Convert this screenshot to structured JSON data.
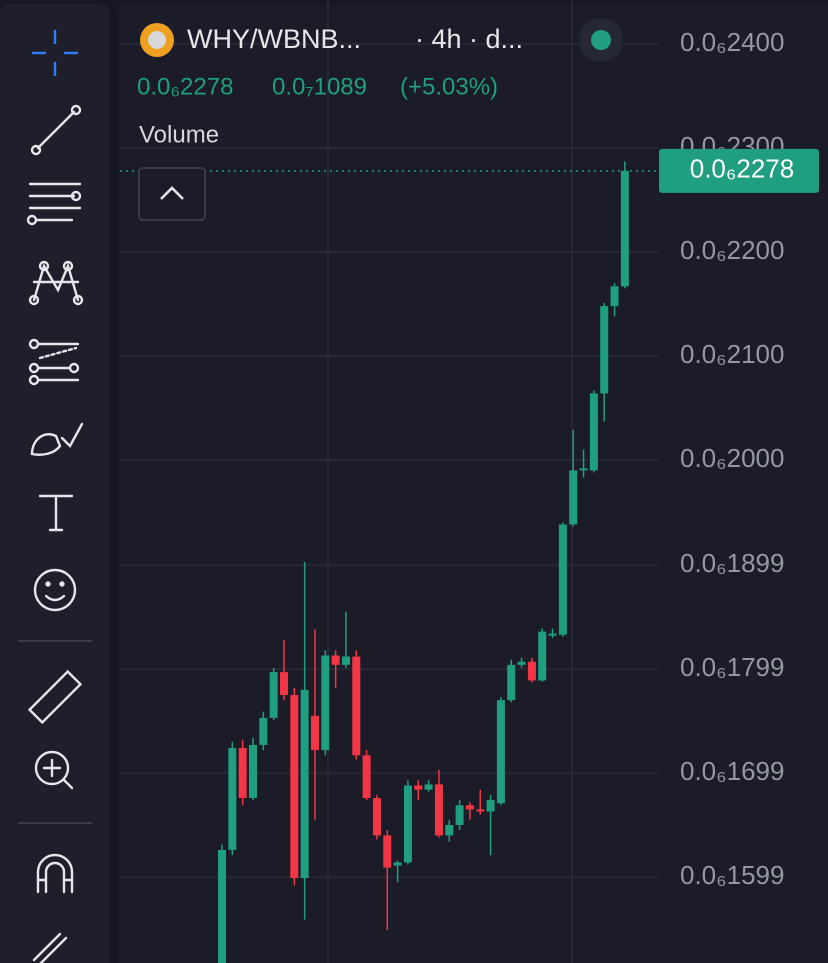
{
  "header": {
    "pair": "WHY/WBNB...",
    "interval": "· 4h · d...",
    "price": "0.0₆2278",
    "change": "0.0₇1089",
    "change_pct": "(+5.03%)",
    "indicator": "Volume"
  },
  "chart_data": {
    "type": "candlestick",
    "up_color": "#1f9e80",
    "down_color": "#f23645",
    "ylim": [
      1.5163e-07,
      2.4423e-07
    ],
    "yticks": [
      {
        "value": 2.4e-07,
        "label": "0.0₆2400"
      },
      {
        "value": 2.3e-07,
        "label": "0.0₆2300"
      },
      {
        "value": 2.2e-07,
        "label": "0.0₆2200"
      },
      {
        "value": 2.1e-07,
        "label": "0.0₆2100"
      },
      {
        "value": 2e-07,
        "label": "0.0₆2000"
      },
      {
        "value": 1.899e-07,
        "label": "0.0₆1899"
      },
      {
        "value": 1.799e-07,
        "label": "0.0₆1799"
      },
      {
        "value": 1.699e-07,
        "label": "0.0₆1699"
      },
      {
        "value": 1.599e-07,
        "label": "0.0₆1599"
      }
    ],
    "last_price": {
      "value": 2.278e-07,
      "label": "0.0₆2278"
    },
    "open": [
      1.51e-07,
      1.625e-07,
      1.723e-07,
      1.675e-07,
      1.726e-07,
      1.752e-07,
      1.796e-07,
      1.774e-07,
      1.598e-07,
      1.754e-07,
      1.721e-07,
      1.812e-07,
      1.803e-07,
      1.811e-07,
      1.716e-07,
      1.675e-07,
      1.639e-07,
      1.61e-07,
      1.613e-07,
      1.687e-07,
      1.683e-07,
      1.688e-07,
      1.639e-07,
      1.649e-07,
      1.668e-07,
      1.664e-07,
      1.662e-07,
      1.67e-07,
      1.769e-07,
      1.803e-07,
      1.806e-07,
      1.788e-07,
      1.831e-07,
      1.832e-07,
      1.938e-07,
      1.99e-07,
      1.99e-07,
      2.064e-07,
      2.148e-07,
      2.167e-07
    ],
    "high": [
      1.63e-07,
      1.729e-07,
      1.731e-07,
      1.733e-07,
      1.758e-07,
      1.8e-07,
      1.827e-07,
      1.781e-07,
      1.902e-07,
      1.837e-07,
      1.817e-07,
      1.817e-07,
      1.854e-07,
      1.817e-07,
      1.721e-07,
      1.678e-07,
      1.644e-07,
      1.615e-07,
      1.692e-07,
      1.692e-07,
      1.692e-07,
      1.702e-07,
      1.654e-07,
      1.673e-07,
      1.671e-07,
      1.683e-07,
      1.678e-07,
      1.772e-07,
      1.808e-07,
      1.81e-07,
      1.81e-07,
      1.838e-07,
      1.838e-07,
      1.94e-07,
      2.029e-07,
      2.01e-07,
      2.067e-07,
      2.151e-07,
      2.17e-07,
      2.287e-07
    ],
    "low": [
      1.51e-07,
      1.62e-07,
      1.668e-07,
      1.673e-07,
      1.721e-07,
      1.75e-07,
      1.769e-07,
      1.591e-07,
      1.558e-07,
      1.654e-07,
      1.716e-07,
      1.781e-07,
      1.8e-07,
      1.712e-07,
      1.673e-07,
      1.635e-07,
      1.548e-07,
      1.594e-07,
      1.611e-07,
      1.673e-07,
      1.681e-07,
      1.637e-07,
      1.633e-07,
      1.644e-07,
      1.654e-07,
      1.659e-07,
      1.62e-07,
      1.668e-07,
      1.767e-07,
      1.8e-07,
      1.786e-07,
      1.787e-07,
      1.829e-07,
      1.83e-07,
      1.936e-07,
      1.983e-07,
      1.988e-07,
      2.037e-07,
      2.138e-07,
      2.165e-07
    ],
    "close": [
      1.625e-07,
      1.723e-07,
      1.675e-07,
      1.726e-07,
      1.752e-07,
      1.796e-07,
      1.774e-07,
      1.598e-07,
      1.779e-07,
      1.721e-07,
      1.812e-07,
      1.803e-07,
      1.811e-07,
      1.716e-07,
      1.675e-07,
      1.639e-07,
      1.608e-07,
      1.613e-07,
      1.687e-07,
      1.683e-07,
      1.688e-07,
      1.639e-07,
      1.649e-07,
      1.668e-07,
      1.664e-07,
      1.662e-07,
      1.673e-07,
      1.769e-07,
      1.803e-07,
      1.806e-07,
      1.788e-07,
      1.835e-07,
      1.833e-07,
      1.938e-07,
      1.99e-07,
      1.992e-07,
      2.064e-07,
      2.148e-07,
      2.167e-07,
      2.278e-07
    ]
  }
}
